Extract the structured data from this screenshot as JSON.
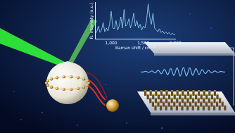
{
  "chart_data": {
    "type": "line",
    "x_label": "Raman shift / cm⁻¹",
    "y_label": "R. intensity (a.u.)",
    "x": [
      750,
      775,
      800,
      825,
      850,
      875,
      900,
      925,
      950,
      975,
      1000,
      1025,
      1050,
      1075,
      1100,
      1125,
      1150,
      1175,
      1200,
      1225,
      1250,
      1275,
      1300,
      1325,
      1350,
      1375,
      1400,
      1425,
      1450,
      1475,
      1500,
      1525,
      1550,
      1575,
      1600,
      1625,
      1650,
      1675,
      1700,
      1725,
      1750,
      1775,
      1800,
      1825,
      1850,
      1875,
      1900,
      1925,
      1950,
      1975,
      2000
    ],
    "values": [
      0.15,
      0.2,
      0.35,
      0.18,
      0.25,
      0.45,
      0.2,
      0.3,
      0.22,
      0.4,
      0.75,
      0.3,
      0.28,
      0.5,
      0.25,
      0.35,
      0.6,
      0.3,
      0.8,
      0.35,
      0.4,
      0.55,
      0.3,
      0.45,
      0.7,
      0.35,
      0.5,
      0.3,
      0.4,
      0.25,
      0.35,
      0.3,
      0.5,
      0.95,
      0.6,
      0.4,
      0.7,
      0.3,
      0.25,
      0.2,
      0.28,
      0.18,
      0.22,
      0.15,
      0.2,
      0.14,
      0.18,
      0.12,
      0.16,
      0.12,
      0.14
    ],
    "color": "#9fdcff",
    "xlim": [
      750,
      2000
    ],
    "xticks": [
      1000,
      1500,
      2000
    ],
    "ylim": [
      0,
      1
    ],
    "tick_labels": "x",
    "grid": false
  }
}
